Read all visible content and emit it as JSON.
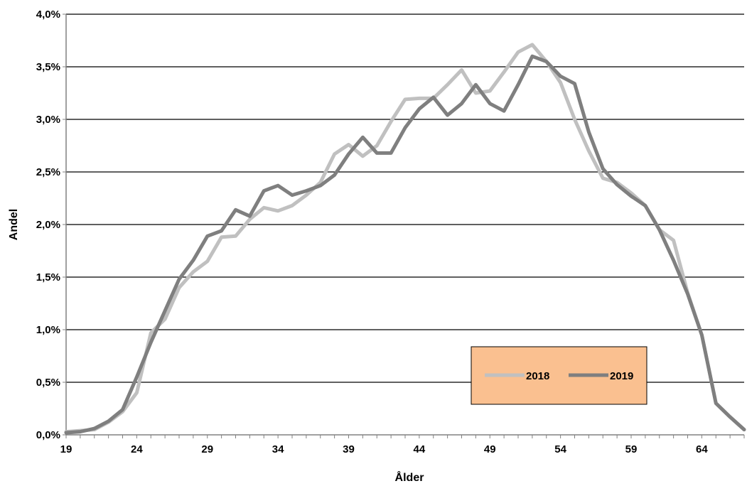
{
  "chart_data": {
    "type": "line",
    "xlabel": "Ålder",
    "ylabel": "Andel",
    "x": [
      19,
      20,
      21,
      22,
      23,
      24,
      25,
      26,
      27,
      28,
      29,
      30,
      31,
      32,
      33,
      34,
      35,
      36,
      37,
      38,
      39,
      40,
      41,
      42,
      43,
      44,
      45,
      46,
      47,
      48,
      49,
      50,
      51,
      52,
      53,
      54,
      55,
      56,
      57,
      58,
      59,
      60,
      61,
      62,
      63,
      64,
      65,
      66,
      67
    ],
    "x_ticks": [
      19,
      24,
      29,
      34,
      39,
      44,
      49,
      54,
      59,
      64
    ],
    "x_tick_labels": [
      "19",
      "24",
      "29",
      "34",
      "39",
      "44",
      "49",
      "54",
      "59",
      "64"
    ],
    "xlim": [
      19,
      67
    ],
    "ylim": [
      0,
      4
    ],
    "y_ticks": [
      0,
      0.5,
      1.0,
      1.5,
      2.0,
      2.5,
      3.0,
      3.5,
      4.0
    ],
    "y_tick_labels": [
      "0,0%",
      "0,5%",
      "1,0%",
      "1,5%",
      "2,0%",
      "2,5%",
      "3,0%",
      "3,5%",
      "4,0%"
    ],
    "y_unit": "%",
    "grid": "horizontal",
    "legend_position": "lower-right",
    "series": [
      {
        "name": "2018",
        "color": "#c0c0c0",
        "values": [
          0.03,
          0.04,
          0.05,
          0.12,
          0.22,
          0.4,
          0.97,
          1.1,
          1.4,
          1.55,
          1.65,
          1.88,
          1.89,
          2.05,
          2.16,
          2.13,
          2.18,
          2.28,
          2.4,
          2.67,
          2.76,
          2.65,
          2.75,
          2.98,
          3.19,
          3.2,
          3.2,
          3.33,
          3.47,
          3.25,
          3.27,
          3.45,
          3.64,
          3.71,
          3.55,
          3.35,
          3.0,
          2.7,
          2.44,
          2.4,
          2.3,
          2.18,
          1.95,
          1.85,
          1.35,
          0.95,
          0.3,
          0.17,
          0.05
        ]
      },
      {
        "name": "2019",
        "color": "#7f7f7f",
        "values": [
          0.02,
          0.03,
          0.06,
          0.13,
          0.24,
          0.55,
          0.88,
          1.18,
          1.48,
          1.66,
          1.89,
          1.94,
          2.14,
          2.08,
          2.32,
          2.37,
          2.28,
          2.32,
          2.37,
          2.47,
          2.67,
          2.83,
          2.68,
          2.68,
          2.92,
          3.1,
          3.21,
          3.04,
          3.15,
          3.33,
          3.15,
          3.08,
          3.33,
          3.6,
          3.55,
          3.41,
          3.34,
          2.88,
          2.53,
          2.38,
          2.27,
          2.18,
          1.95,
          1.66,
          1.34,
          0.95,
          0.3,
          0.17,
          0.05
        ]
      }
    ]
  }
}
